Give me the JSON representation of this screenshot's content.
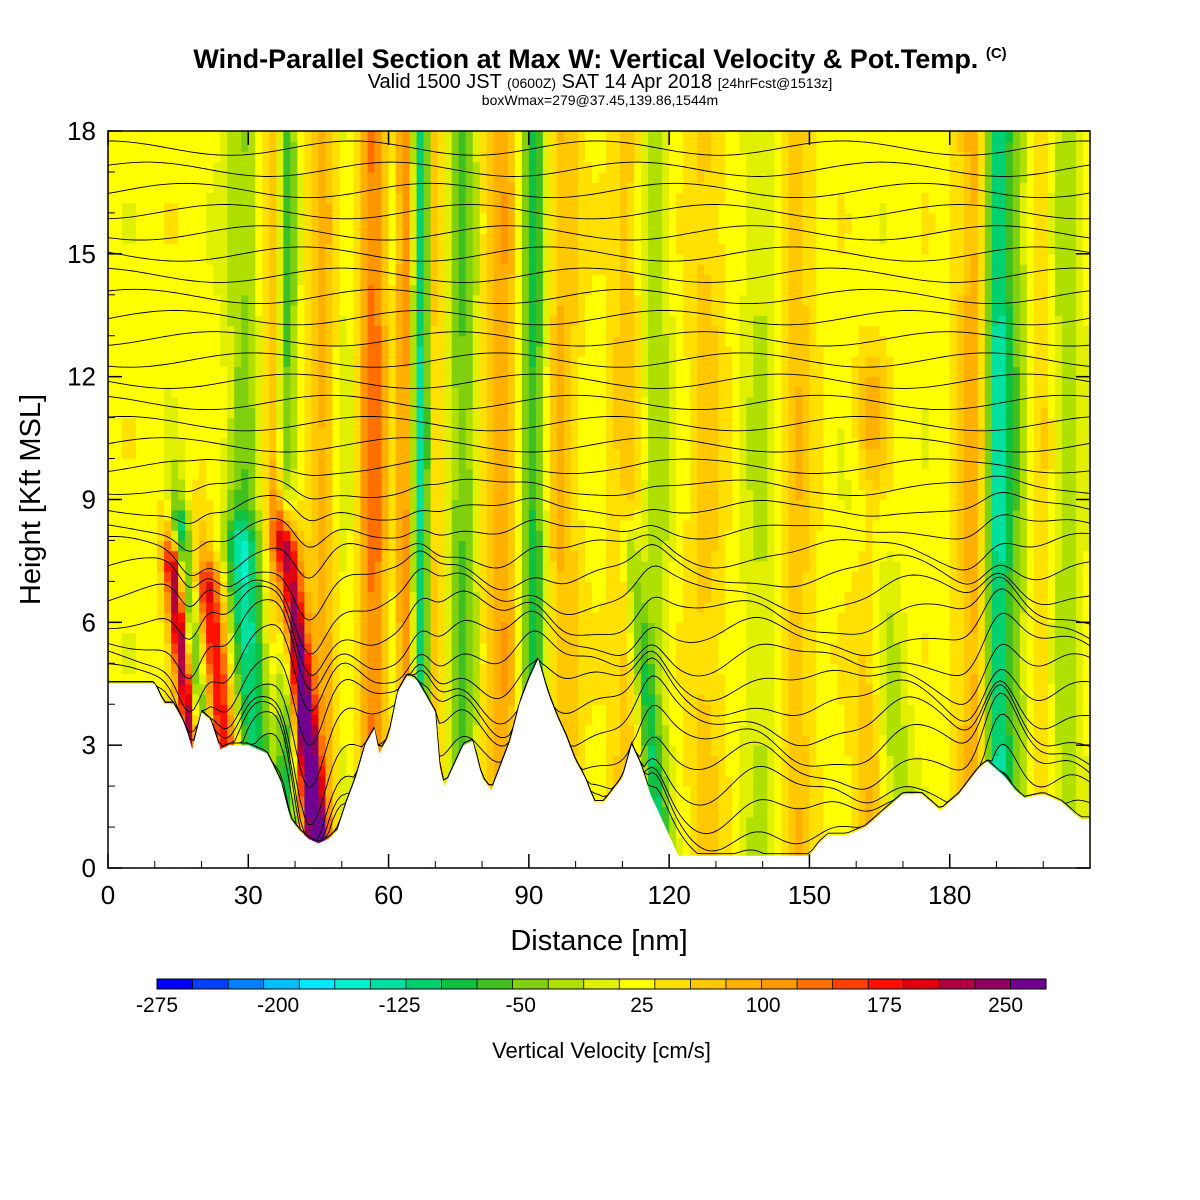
{
  "header": {
    "title": "Wind-Parallel Section at Max W: Vertical Velocity & Pot.Temp.",
    "title_mark": "(C)",
    "subtitle_a": "Valid 1500 JST",
    "subtitle_b": "(0600Z)",
    "subtitle_c": "SAT 14 Apr 2018",
    "subtitle_d": "[24hrFcst@1513z]",
    "box_info": "boxWmax=279@37.45,139.86,1544m"
  },
  "chart_data": {
    "type": "heatmap",
    "xlabel": "Distance [nm]",
    "ylabel": "Height [Kft MSL]",
    "xlim": [
      0,
      210
    ],
    "ylim": [
      0,
      18
    ],
    "x_ticks": [
      0,
      30,
      60,
      90,
      120,
      150,
      180
    ],
    "y_ticks": [
      0,
      3,
      6,
      9,
      12,
      15,
      18
    ],
    "colorbar": {
      "title": "Vertical Velocity [cm/s]",
      "range": [
        -275,
        275
      ],
      "labels": [
        -275,
        -200,
        -125,
        -50,
        25,
        100,
        175,
        250
      ],
      "colors": [
        "#0000ff",
        "#0040ff",
        "#0080ff",
        "#00c0ff",
        "#00e8ff",
        "#00f0d0",
        "#00e0a0",
        "#00d070",
        "#10c040",
        "#40c020",
        "#80d010",
        "#b0e000",
        "#e0f000",
        "#ffff00",
        "#ffe000",
        "#ffc800",
        "#ffb000",
        "#ff9800",
        "#ff7000",
        "#ff4000",
        "#ff1000",
        "#e00010",
        "#b00040",
        "#900060",
        "#700090"
      ]
    },
    "terrain_profile": [
      [
        0,
        4.5
      ],
      [
        5,
        4.5
      ],
      [
        10,
        4.5
      ],
      [
        12,
        4.0
      ],
      [
        14,
        4.0
      ],
      [
        16,
        3.6
      ],
      [
        17,
        3.3
      ],
      [
        18,
        2.9
      ],
      [
        20,
        3.8
      ],
      [
        22,
        3.6
      ],
      [
        24,
        2.9
      ],
      [
        26,
        3.0
      ],
      [
        30,
        3.0
      ],
      [
        34,
        2.8
      ],
      [
        37,
        2.1
      ],
      [
        39,
        1.2
      ],
      [
        41,
        0.9
      ],
      [
        43,
        0.7
      ],
      [
        45,
        0.6
      ],
      [
        47,
        0.7
      ],
      [
        49,
        0.9
      ],
      [
        51,
        1.6
      ],
      [
        53,
        2.2
      ],
      [
        55,
        3.0
      ],
      [
        57,
        3.4
      ],
      [
        58,
        2.8
      ],
      [
        60,
        3.2
      ],
      [
        62,
        4.3
      ],
      [
        64,
        4.7
      ],
      [
        66,
        4.6
      ],
      [
        68,
        4.2
      ],
      [
        70,
        3.8
      ],
      [
        71,
        2.4
      ],
      [
        72,
        2.0
      ],
      [
        74,
        2.5
      ],
      [
        76,
        3.0
      ],
      [
        78,
        3.1
      ],
      [
        80,
        2.2
      ],
      [
        82,
        1.9
      ],
      [
        84,
        2.5
      ],
      [
        86,
        3.1
      ],
      [
        88,
        4.0
      ],
      [
        90,
        4.6
      ],
      [
        92,
        5.1
      ],
      [
        94,
        4.3
      ],
      [
        96,
        3.7
      ],
      [
        98,
        3.2
      ],
      [
        100,
        2.6
      ],
      [
        102,
        2.2
      ],
      [
        104,
        1.6
      ],
      [
        106,
        1.6
      ],
      [
        108,
        1.9
      ],
      [
        110,
        2.2
      ],
      [
        112,
        3.0
      ],
      [
        114,
        2.5
      ],
      [
        116,
        1.8
      ],
      [
        118,
        1.3
      ],
      [
        120,
        0.8
      ],
      [
        122,
        0.3
      ],
      [
        126,
        0.3
      ],
      [
        130,
        0.3
      ],
      [
        140,
        0.3
      ],
      [
        150,
        0.3
      ],
      [
        152,
        0.6
      ],
      [
        154,
        0.8
      ],
      [
        158,
        0.8
      ],
      [
        162,
        1.0
      ],
      [
        166,
        1.4
      ],
      [
        170,
        1.8
      ],
      [
        174,
        1.8
      ],
      [
        178,
        1.4
      ],
      [
        182,
        1.8
      ],
      [
        186,
        2.4
      ],
      [
        188,
        2.6
      ],
      [
        190,
        2.4
      ],
      [
        192,
        2.2
      ],
      [
        194,
        1.9
      ],
      [
        196,
        1.7
      ],
      [
        200,
        1.8
      ],
      [
        204,
        1.6
      ],
      [
        208,
        1.2
      ],
      [
        210,
        1.2
      ]
    ],
    "features": [
      {
        "x": 18,
        "ztop": 7.5,
        "w": 255,
        "width": 1.4
      },
      {
        "x": 20,
        "ztop": 8.5,
        "w": -150,
        "width": 1.6
      },
      {
        "x": 25,
        "ztop": 7.0,
        "w": 180,
        "width": 2.2
      },
      {
        "x": 29,
        "ztop": 18,
        "w": -60,
        "width": 2.5
      },
      {
        "x": 33,
        "ztop": 8.0,
        "w": -110,
        "width": 3.0
      },
      {
        "x": 36,
        "ztop": 18,
        "w": 70,
        "width": 2.0
      },
      {
        "x": 38,
        "ztop": 18,
        "w": -120,
        "width": 1.6
      },
      {
        "x": 42.5,
        "ztop": 8.0,
        "w": 279,
        "width": 1.8
      },
      {
        "x": 46,
        "ztop": 18,
        "w": 60,
        "width": 2.5
      },
      {
        "x": 51,
        "ztop": 18,
        "w": -40,
        "width": 2.0
      },
      {
        "x": 57,
        "ztop": 18,
        "w": 110,
        "width": 3.0
      },
      {
        "x": 61,
        "ztop": 18,
        "w": -70,
        "width": 1.5
      },
      {
        "x": 64,
        "ztop": 18,
        "w": 130,
        "width": 2.0
      },
      {
        "x": 66.5,
        "ztop": 18,
        "w": -200,
        "width": 1.6
      },
      {
        "x": 70,
        "ztop": 18,
        "w": 60,
        "width": 1.5
      },
      {
        "x": 76,
        "ztop": 18,
        "w": -80,
        "width": 2.5
      },
      {
        "x": 84,
        "ztop": 18,
        "w": 70,
        "width": 3.0
      },
      {
        "x": 91,
        "ztop": 18,
        "w": -110,
        "width": 2.0
      },
      {
        "x": 97,
        "ztop": 18,
        "w": 60,
        "width": 2.5
      },
      {
        "x": 111,
        "ztop": 18,
        "w": 50,
        "width": 2.5
      },
      {
        "x": 116,
        "ztop": 8.0,
        "w": -80,
        "width": 1.5
      },
      {
        "x": 117,
        "ztop": 18,
        "w": -50,
        "width": 2.5
      },
      {
        "x": 128,
        "ztop": 18,
        "w": 40,
        "width": 3.0
      },
      {
        "x": 140,
        "ztop": 18,
        "w": -40,
        "width": 3.0
      },
      {
        "x": 147,
        "ztop": 18,
        "w": 50,
        "width": 3.0
      },
      {
        "x": 163,
        "ztop": 12,
        "w": 60,
        "width": 2.5
      },
      {
        "x": 168,
        "ztop": 9,
        "w": -50,
        "width": 3.0
      },
      {
        "x": 185,
        "ztop": 18,
        "w": 70,
        "width": 2.5
      },
      {
        "x": 190,
        "ztop": 18,
        "w": -140,
        "width": 1.8
      },
      {
        "x": 194,
        "ztop": 18,
        "w": -70,
        "width": 2.5
      },
      {
        "x": 199,
        "ztop": 18,
        "w": 40,
        "width": 2.5
      },
      {
        "x": 205,
        "ztop": 18,
        "w": -50,
        "width": 2.5
      }
    ],
    "contour_levels": 34
  }
}
